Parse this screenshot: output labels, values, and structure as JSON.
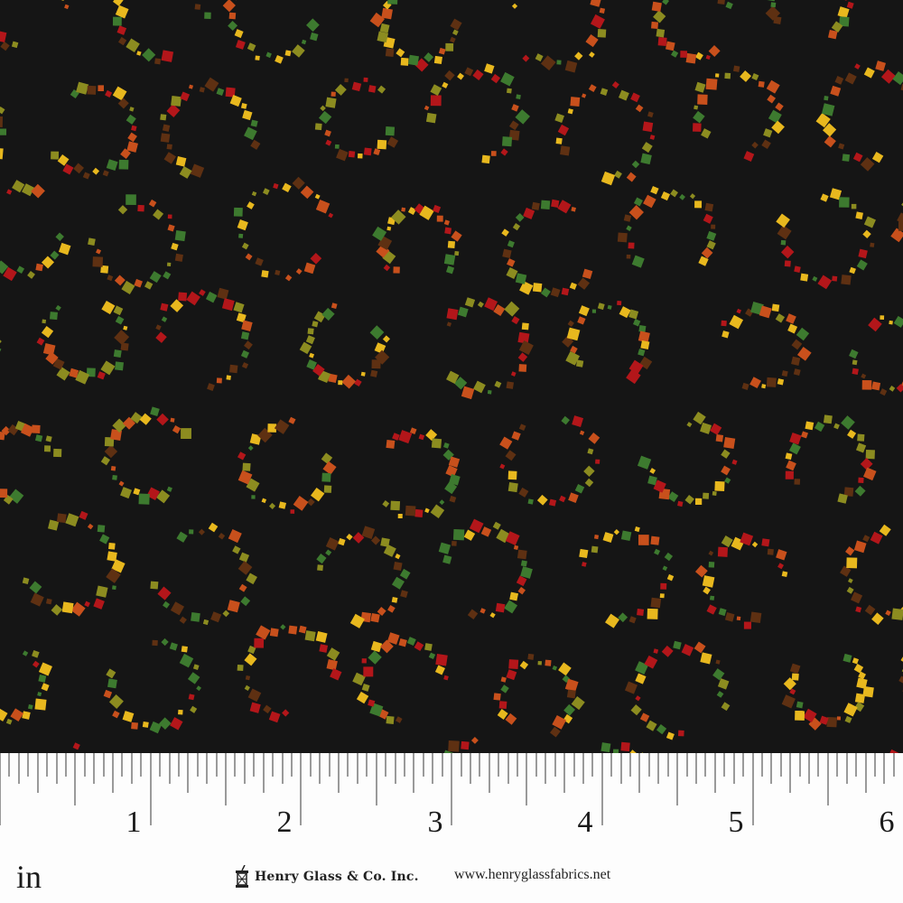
{
  "fabric": {
    "background": "#151515",
    "motif": "dotted-ring",
    "dot_colors": [
      "#b3161a",
      "#c8501c",
      "#3d7a2f",
      "#8c8c20",
      "#e8b81e",
      "#5e3012"
    ]
  },
  "ruler": {
    "unit_label": "in",
    "numbers": [
      "1",
      "2",
      "3",
      "4",
      "5",
      "6"
    ],
    "subdivisions_per_inch": 16
  },
  "brand": {
    "name": "Henry Glass & Co. Inc.",
    "url": "www.henryglassfabrics.net"
  }
}
